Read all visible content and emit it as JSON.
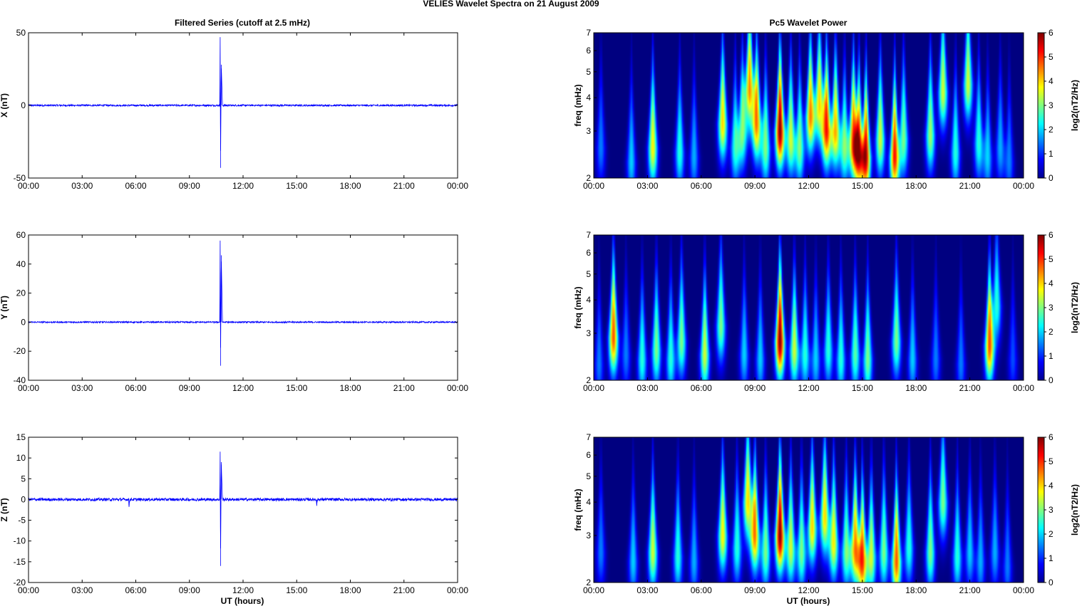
{
  "figure": {
    "title": "VELIES Wavelet Spectra on 21 August    2009",
    "left_title": "Filtered Series (cutoff at 2.5 mHz)",
    "right_title": "Pc5 Wavelet Power",
    "xlabel": "UT (hours)"
  },
  "colors": {
    "series_line": "#0000ff",
    "spectrogram_background": "#00008f"
  },
  "chart_data": [
    {
      "type": "line",
      "ylabel": "X (nT)",
      "x_ticks": [
        "00:00",
        "03:00",
        "06:00",
        "09:00",
        "12:00",
        "15:00",
        "18:00",
        "21:00",
        "00:00"
      ],
      "xlim_hours": [
        0,
        24
      ],
      "ylim": [
        -50,
        50
      ],
      "y_ticks": [
        -50,
        0,
        50
      ],
      "noise_amplitude": 0.6,
      "series": [
        {
          "x": [
            0,
            10.7,
            10.72,
            10.74,
            10.78,
            10.85,
            24
          ],
          "y": [
            0,
            0,
            47,
            -43,
            28,
            0,
            0
          ]
        }
      ]
    },
    {
      "type": "line",
      "ylabel": "Y (nT)",
      "x_ticks": [
        "00:00",
        "03:00",
        "06:00",
        "09:00",
        "12:00",
        "15:00",
        "18:00",
        "21:00",
        "00:00"
      ],
      "xlim_hours": [
        0,
        24
      ],
      "ylim": [
        -40,
        60
      ],
      "y_ticks": [
        -40,
        -20,
        0,
        20,
        40,
        60
      ],
      "noise_amplitude": 0.5,
      "series": [
        {
          "x": [
            0,
            10.7,
            10.72,
            10.74,
            10.78,
            10.85,
            24
          ],
          "y": [
            0,
            0,
            56,
            -30,
            46,
            0,
            0
          ]
        }
      ]
    },
    {
      "type": "line",
      "ylabel": "Z (nT)",
      "x_ticks": [
        "00:00",
        "03:00",
        "06:00",
        "09:00",
        "12:00",
        "15:00",
        "18:00",
        "21:00",
        "00:00"
      ],
      "xlim_hours": [
        0,
        24
      ],
      "ylim": [
        -20,
        15
      ],
      "y_ticks": [
        -20,
        -15,
        -10,
        -5,
        0,
        5,
        10,
        15
      ],
      "noise_amplitude": 0.35,
      "series": [
        {
          "x": [
            0,
            5.6,
            5.62,
            5.66,
            10.7,
            10.72,
            10.74,
            10.78,
            10.85,
            16.1,
            16.12,
            16.16,
            24
          ],
          "y": [
            0,
            0,
            -1.8,
            0,
            0,
            11.5,
            -16,
            9,
            0,
            0,
            -1.5,
            0,
            0
          ]
        }
      ]
    },
    {
      "type": "heatmap",
      "ylabel": "freq (mHz)",
      "x_ticks": [
        "00:00",
        "03:00",
        "06:00",
        "09:00",
        "12:00",
        "15:00",
        "18:00",
        "21:00",
        "00:00"
      ],
      "xlim_hours": [
        0,
        24
      ],
      "ylim_mhz": [
        2,
        7
      ],
      "y_ticks": [
        2,
        3,
        4,
        5,
        6,
        7
      ],
      "y_scale": "log",
      "colorbar": {
        "label": "log2(nT2/Hz)",
        "ticks": [
          0,
          1,
          2,
          3,
          4,
          5,
          6
        ],
        "range": [
          0,
          6
        ]
      },
      "bursts": [
        [
          0.4,
          2.6,
          1.5
        ],
        [
          2.1,
          2.3,
          2.0
        ],
        [
          3.3,
          2.6,
          3.8
        ],
        [
          4.8,
          2.5,
          2.5
        ],
        [
          5.6,
          2.4,
          1.8
        ],
        [
          7.2,
          3.2,
          4.0
        ],
        [
          7.9,
          2.6,
          2.5
        ],
        [
          8.3,
          3.0,
          3.0
        ],
        [
          8.7,
          4.3,
          4.5
        ],
        [
          9.1,
          3.2,
          4.5
        ],
        [
          9.6,
          2.6,
          3.0
        ],
        [
          10.4,
          3.0,
          6.0
        ],
        [
          11.0,
          2.8,
          3.5
        ],
        [
          11.5,
          2.6,
          3.0
        ],
        [
          12.1,
          3.4,
          4.5
        ],
        [
          12.6,
          3.8,
          4.0
        ],
        [
          13.0,
          3.0,
          5.0
        ],
        [
          13.5,
          3.0,
          4.2
        ],
        [
          14.0,
          2.6,
          3.0
        ],
        [
          14.5,
          2.8,
          4.8
        ],
        [
          14.8,
          2.5,
          5.0
        ],
        [
          15.2,
          2.4,
          5.5
        ],
        [
          16.0,
          2.8,
          3.5
        ],
        [
          16.8,
          2.4,
          5.2
        ],
        [
          17.3,
          2.8,
          3.0
        ],
        [
          18.8,
          2.9,
          3.2
        ],
        [
          19.5,
          4.2,
          3.5
        ],
        [
          20.2,
          2.5,
          2.5
        ],
        [
          20.9,
          4.5,
          3.5
        ],
        [
          21.5,
          2.7,
          2.5
        ],
        [
          22.0,
          2.4,
          2.0
        ],
        [
          22.7,
          2.6,
          1.8
        ],
        [
          23.2,
          2.3,
          1.5
        ]
      ]
    },
    {
      "type": "heatmap",
      "ylabel": "freq (mHz)",
      "x_ticks": [
        "00:00",
        "03:00",
        "06:00",
        "09:00",
        "12:00",
        "15:00",
        "18:00",
        "21:00",
        "00:00"
      ],
      "xlim_hours": [
        0,
        24
      ],
      "ylim_mhz": [
        2,
        7
      ],
      "y_ticks": [
        2,
        3,
        4,
        5,
        6,
        7
      ],
      "y_scale": "log",
      "colorbar": {
        "label": "log2(nT2/Hz)",
        "ticks": [
          0,
          1,
          2,
          3,
          4,
          5,
          6
        ],
        "range": [
          0,
          6
        ]
      },
      "bursts": [
        [
          0.3,
          2.3,
          1.5
        ],
        [
          1.1,
          2.9,
          4.8
        ],
        [
          1.8,
          2.5,
          1.5
        ],
        [
          2.7,
          2.4,
          2.5
        ],
        [
          3.5,
          2.6,
          3.0
        ],
        [
          4.3,
          2.4,
          2.5
        ],
        [
          4.9,
          2.8,
          3.0
        ],
        [
          6.2,
          2.5,
          3.5
        ],
        [
          7.1,
          3.2,
          3.0
        ],
        [
          8.4,
          2.5,
          2.0
        ],
        [
          9.3,
          2.4,
          2.0
        ],
        [
          10.4,
          2.8,
          6.0
        ],
        [
          11.2,
          2.6,
          3.5
        ],
        [
          11.8,
          2.5,
          2.5
        ],
        [
          12.4,
          2.4,
          2.0
        ],
        [
          13.1,
          2.6,
          2.5
        ],
        [
          13.8,
          2.4,
          2.5
        ],
        [
          14.6,
          2.5,
          2.8
        ],
        [
          15.3,
          2.4,
          3.0
        ],
        [
          16.9,
          2.8,
          3.0
        ],
        [
          17.8,
          2.4,
          2.0
        ],
        [
          19.1,
          2.4,
          1.5
        ],
        [
          20.5,
          2.3,
          1.5
        ],
        [
          22.1,
          2.7,
          4.8
        ],
        [
          22.5,
          3.8,
          2.5
        ],
        [
          23.4,
          2.4,
          1.2
        ]
      ]
    },
    {
      "type": "heatmap",
      "ylabel": "freq (mHz)",
      "x_ticks": [
        "00:00",
        "03:00",
        "06:00",
        "09:00",
        "12:00",
        "15:00",
        "18:00",
        "21:00",
        "00:00"
      ],
      "xlim_hours": [
        0,
        24
      ],
      "ylim_mhz": [
        2,
        7
      ],
      "y_ticks": [
        2,
        3,
        4,
        5,
        6,
        7
      ],
      "y_scale": "log",
      "colorbar": {
        "label": "log2(nT2/Hz)",
        "ticks": [
          0,
          1,
          2,
          3,
          4,
          5,
          6
        ],
        "range": [
          0,
          6
        ]
      },
      "bursts": [
        [
          0.4,
          2.6,
          1.5
        ],
        [
          2.2,
          2.4,
          2.0
        ],
        [
          3.3,
          2.6,
          3.5
        ],
        [
          4.7,
          2.5,
          2.5
        ],
        [
          5.6,
          2.4,
          1.8
        ],
        [
          7.2,
          3.0,
          3.8
        ],
        [
          8.0,
          2.7,
          2.5
        ],
        [
          8.6,
          4.0,
          4.0
        ],
        [
          9.0,
          3.0,
          4.5
        ],
        [
          9.6,
          2.6,
          3.0
        ],
        [
          10.4,
          3.0,
          6.0
        ],
        [
          11.0,
          2.7,
          3.5
        ],
        [
          11.6,
          2.6,
          3.0
        ],
        [
          12.2,
          3.2,
          4.0
        ],
        [
          12.9,
          3.5,
          4.0
        ],
        [
          13.4,
          2.8,
          3.8
        ],
        [
          14.1,
          2.6,
          3.0
        ],
        [
          14.6,
          2.7,
          4.5
        ],
        [
          15.0,
          2.4,
          4.8
        ],
        [
          15.5,
          2.5,
          3.5
        ],
        [
          16.2,
          2.6,
          3.0
        ],
        [
          16.9,
          2.4,
          4.8
        ],
        [
          17.6,
          2.7,
          2.5
        ],
        [
          18.8,
          2.6,
          3.0
        ],
        [
          19.5,
          4.0,
          3.0
        ],
        [
          20.3,
          2.5,
          2.5
        ],
        [
          21.0,
          2.6,
          2.0
        ],
        [
          21.6,
          2.4,
          1.8
        ],
        [
          22.4,
          2.6,
          1.8
        ],
        [
          23.1,
          2.3,
          1.5
        ]
      ]
    }
  ]
}
